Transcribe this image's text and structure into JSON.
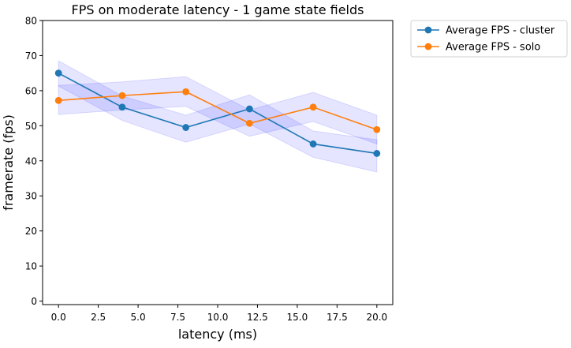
{
  "chart_data": {
    "type": "line",
    "title": "FPS on moderate latency - 1 game state fields",
    "xlabel": "latency (ms)",
    "ylabel": "framerate (fps)",
    "xlim": [
      -1,
      21
    ],
    "ylim": [
      -1,
      80
    ],
    "xticks": [
      0.0,
      2.5,
      5.0,
      7.5,
      10.0,
      12.5,
      15.0,
      17.5,
      20.0
    ],
    "xtick_labels": [
      "0.0",
      "2.5",
      "5.0",
      "7.5",
      "10.0",
      "12.5",
      "15.0",
      "17.5",
      "20.0"
    ],
    "yticks": [
      0,
      10,
      20,
      30,
      40,
      50,
      60,
      70,
      80
    ],
    "ytick_labels": [
      "0",
      "10",
      "20",
      "30",
      "40",
      "50",
      "60",
      "70",
      "80"
    ],
    "legend_position": "outside-top-right",
    "grid": false,
    "x": [
      0,
      4,
      8,
      12,
      16,
      20
    ],
    "series": [
      {
        "name": "Average FPS - cluster",
        "color": "#1f77b4",
        "values": [
          65.0,
          55.3,
          49.5,
          54.8,
          44.8,
          42.1
        ],
        "band_upper": [
          68.5,
          58.5,
          53.0,
          58.8,
          48.5,
          46.0
        ],
        "band_lower": [
          61.3,
          51.5,
          45.3,
          50.5,
          41.0,
          36.8
        ]
      },
      {
        "name": "Average FPS - solo",
        "color": "#ff7f0e",
        "values": [
          57.2,
          58.6,
          59.7,
          50.7,
          55.3,
          48.9
        ],
        "band_upper": [
          61.5,
          62.5,
          64.0,
          54.5,
          59.5,
          53.0
        ],
        "band_lower": [
          53.2,
          54.5,
          55.5,
          47.0,
          51.2,
          44.8
        ]
      }
    ],
    "band_color": "#0000ff"
  }
}
